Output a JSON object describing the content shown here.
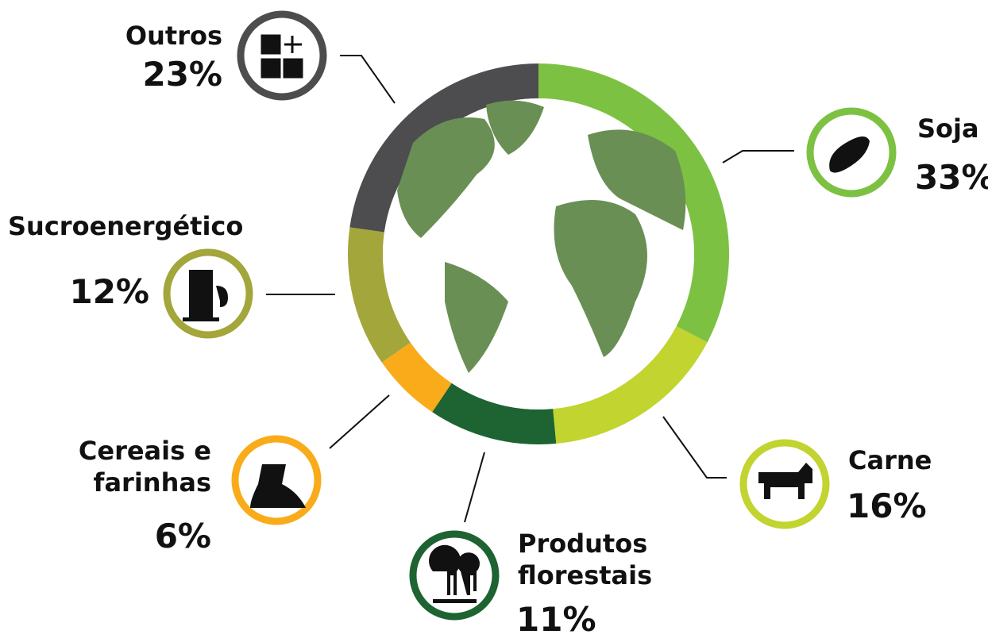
{
  "chart_data": {
    "type": "donut",
    "categories": [
      "Soja",
      "Carne",
      "Produtos florestais",
      "Cereais e farinhas",
      "Sucroenergético",
      "Outros"
    ],
    "values": [
      33,
      16,
      11,
      6,
      12,
      23
    ],
    "value_labels": [
      "33%",
      "16%",
      "11%",
      "6%",
      "12%",
      "23%"
    ],
    "colors": [
      "#7dc142",
      "#c1d42f",
      "#1e6332",
      "#f9ab1a",
      "#a3a63a",
      "#4d4d4f"
    ]
  }
}
